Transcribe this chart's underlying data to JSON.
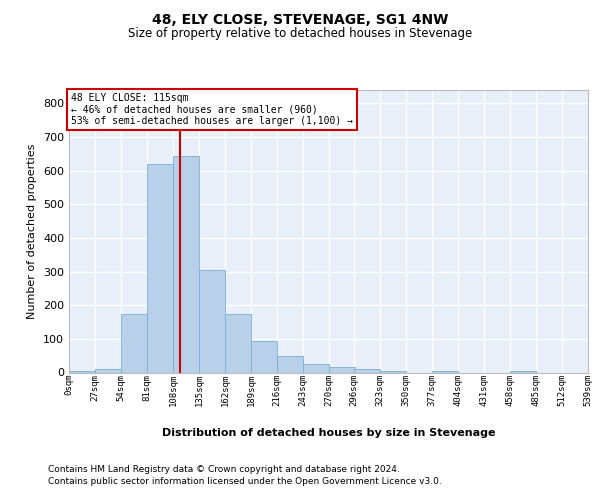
{
  "title": "48, ELY CLOSE, STEVENAGE, SG1 4NW",
  "subtitle": "Size of property relative to detached houses in Stevenage",
  "xlabel": "Distribution of detached houses by size in Stevenage",
  "ylabel": "Number of detached properties",
  "footnote1": "Contains HM Land Registry data © Crown copyright and database right 2024.",
  "footnote2": "Contains public sector information licensed under the Open Government Licence v3.0.",
  "bar_color": "#b8d0ea",
  "bar_edge_color": "#7aafd4",
  "bg_color": "#e8eff8",
  "grid_color": "#ffffff",
  "vline_color": "#cc0000",
  "annotation_text_line1": "48 ELY CLOSE: 115sqm",
  "annotation_text_line2": "← 46% of detached houses are smaller (960)",
  "annotation_text_line3": "53% of semi-detached houses are larger (1,100) →",
  "property_sqm": 115,
  "bin_edges": [
    0,
    27,
    54,
    81,
    108,
    135,
    162,
    189,
    216,
    243,
    270,
    296,
    323,
    350,
    377,
    404,
    431,
    458,
    485,
    512,
    539
  ],
  "bar_heights": [
    5,
    10,
    175,
    620,
    645,
    305,
    175,
    95,
    50,
    25,
    15,
    10,
    5,
    0,
    5,
    0,
    0,
    5,
    0,
    0
  ],
  "ylim": [
    0,
    840
  ],
  "yticks": [
    0,
    100,
    200,
    300,
    400,
    500,
    600,
    700,
    800
  ],
  "tick_labels": [
    "0sqm",
    "27sqm",
    "54sqm",
    "81sqm",
    "108sqm",
    "135sqm",
    "162sqm",
    "189sqm",
    "216sqm",
    "243sqm",
    "270sqm",
    "296sqm",
    "323sqm",
    "350sqm",
    "377sqm",
    "404sqm",
    "431sqm",
    "458sqm",
    "485sqm",
    "512sqm",
    "539sqm"
  ]
}
